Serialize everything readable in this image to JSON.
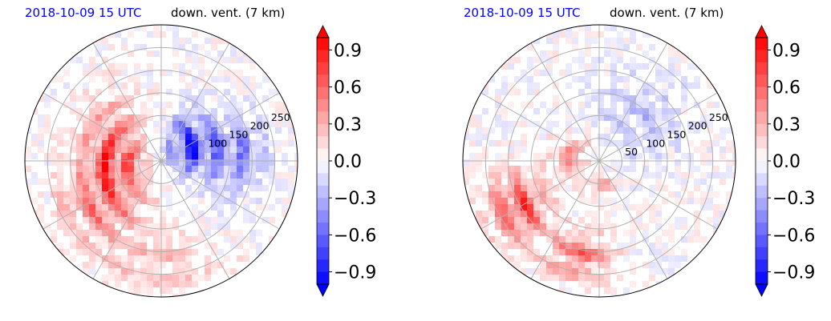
{
  "colors": {
    "positive": "#ff0000",
    "negative": "#0000ff",
    "zero": "#ffffff",
    "date_label": "#0000ff",
    "grid": "#b0b0b0"
  },
  "chart_data": [
    {
      "type": "heatmap",
      "projection": "polar",
      "date_label": "2018-10-09 15 UTC",
      "title": "down. vent. (7 km)",
      "radial_ticks": [
        "100",
        "150",
        "200",
        "250"
      ],
      "radial_tick_values": [
        100,
        150,
        200,
        250
      ],
      "radial_range": [
        0,
        300
      ],
      "rings": [
        50,
        100,
        150,
        200,
        250
      ],
      "spokes_deg": 30,
      "grid": true,
      "colorbar": {
        "ticks": [
          "0.9",
          "0.6",
          "0.3",
          "0.0",
          "−0.3",
          "−0.6",
          "−0.9"
        ],
        "tick_values": [
          0.9,
          0.6,
          0.3,
          0.0,
          -0.3,
          -0.6,
          -0.9
        ],
        "range": [
          -1.0,
          1.0
        ],
        "levels": 20,
        "extend": "both",
        "cmap": "bwr"
      }
    },
    {
      "type": "heatmap",
      "projection": "polar",
      "date_label": "2018-10-09 15 UTC",
      "title": "down. vent. (7 km)",
      "radial_ticks": [
        "50",
        "100",
        "150",
        "200",
        "250"
      ],
      "radial_tick_values": [
        50,
        100,
        150,
        200,
        250
      ],
      "radial_range": [
        0,
        300
      ],
      "rings": [
        50,
        100,
        150,
        200,
        250
      ],
      "spokes_deg": 30,
      "grid": true,
      "colorbar": {
        "ticks": [
          "0.9",
          "0.6",
          "0.3",
          "0.0",
          "−0.3",
          "−0.6",
          "−0.9"
        ],
        "tick_values": [
          0.9,
          0.6,
          0.3,
          0.0,
          -0.3,
          -0.6,
          -0.9
        ],
        "range": [
          -1.0,
          1.0
        ],
        "levels": 20,
        "extend": "both",
        "cmap": "bwr"
      }
    }
  ]
}
